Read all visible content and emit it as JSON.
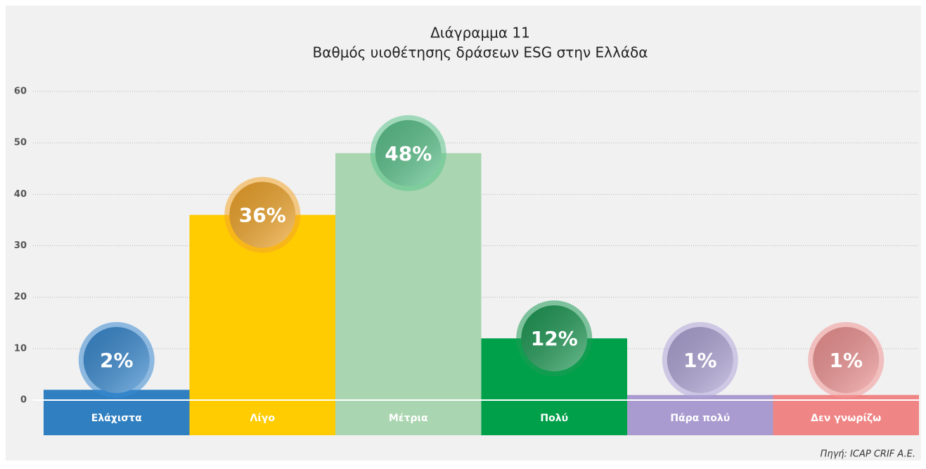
{
  "chart_data": {
    "type": "bar",
    "title": "Διάγραμμα 11",
    "subtitle": "Βαθμός υιοθέτησης δράσεων ESG στην Ελλάδα",
    "categories": [
      "Ελάχιστα",
      "Λίγο",
      "Μέτρια",
      "Πολύ",
      "Πάρα πολύ",
      "Δεν γνωρίζω"
    ],
    "values": [
      2,
      36,
      48,
      12,
      1,
      1
    ],
    "value_labels": [
      "2%",
      "36%",
      "48%",
      "12%",
      "1%",
      "1%"
    ],
    "colors": [
      "#2f7fc1",
      "#fecc00",
      "#a9d5b0",
      "#00a04a",
      "#a99bcf",
      "#f08585"
    ],
    "label_colors": [
      "#3a8bd2",
      "#f2a62a",
      "#5cc48c",
      "#1e9a55",
      "#b1a6d8",
      "#f29595"
    ],
    "ylim": [
      0,
      60
    ],
    "yticks": [
      0,
      10,
      20,
      30,
      40,
      50,
      60
    ],
    "grid": true,
    "source": "Πηγή: ICAP CRIF A.E."
  }
}
